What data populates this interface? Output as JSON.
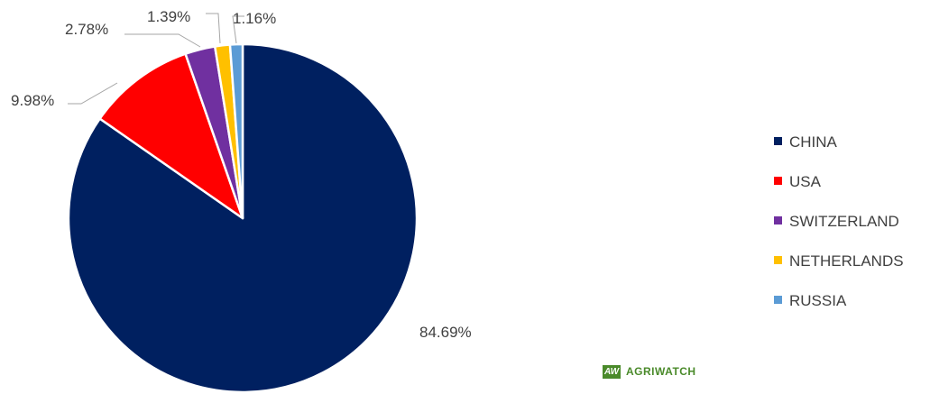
{
  "chart_data": {
    "type": "pie",
    "title": "",
    "legend_position": "right",
    "slices": [
      {
        "name": "CHINA",
        "value": 84.69,
        "label": "84.69%",
        "color": "#002060"
      },
      {
        "name": "USA",
        "value": 9.98,
        "label": "9.98%",
        "color": "#ff0000"
      },
      {
        "name": "SWITZERLAND",
        "value": 2.78,
        "label": "2.78%",
        "color": "#7030a0"
      },
      {
        "name": "NETHERLANDS",
        "value": 1.39,
        "label": "1.39%",
        "color": "#ffc000"
      },
      {
        "name": "RUSSIA",
        "value": 1.16,
        "label": "1.16%",
        "color": "#5b9bd5"
      }
    ]
  },
  "watermark": {
    "logo_mark": "AW",
    "text": "AGRIWATCH"
  }
}
